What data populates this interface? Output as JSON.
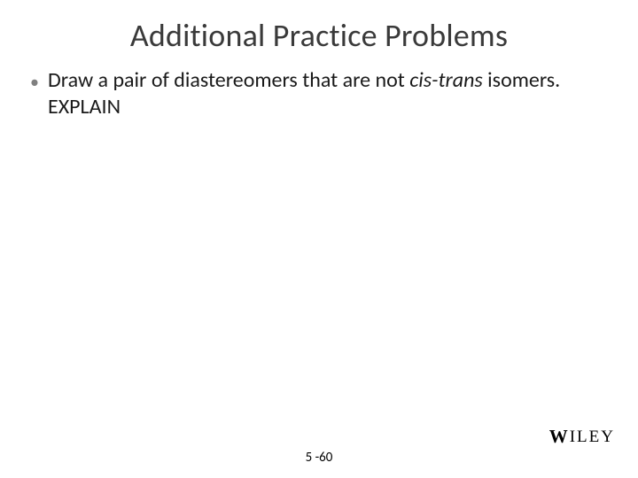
{
  "title": "Additional Practice Problems",
  "bullet": {
    "marker": "•",
    "pre": "Draw a pair of diastereomers that are not ",
    "italic": "cis-trans",
    "post": " isomers. EXPLAIN"
  },
  "pageNumber": "5 -60",
  "logo": {
    "w": "W",
    "rest": "ILEY"
  },
  "colors": {
    "title": "#3a3a3a",
    "bulletMarker": "#808080",
    "bodyText": "#1a1a1a",
    "background": "#ffffff"
  },
  "fonts": {
    "titleSize": 36,
    "bodySize": 24,
    "pageNumSize": 15,
    "logoSize": 19
  }
}
